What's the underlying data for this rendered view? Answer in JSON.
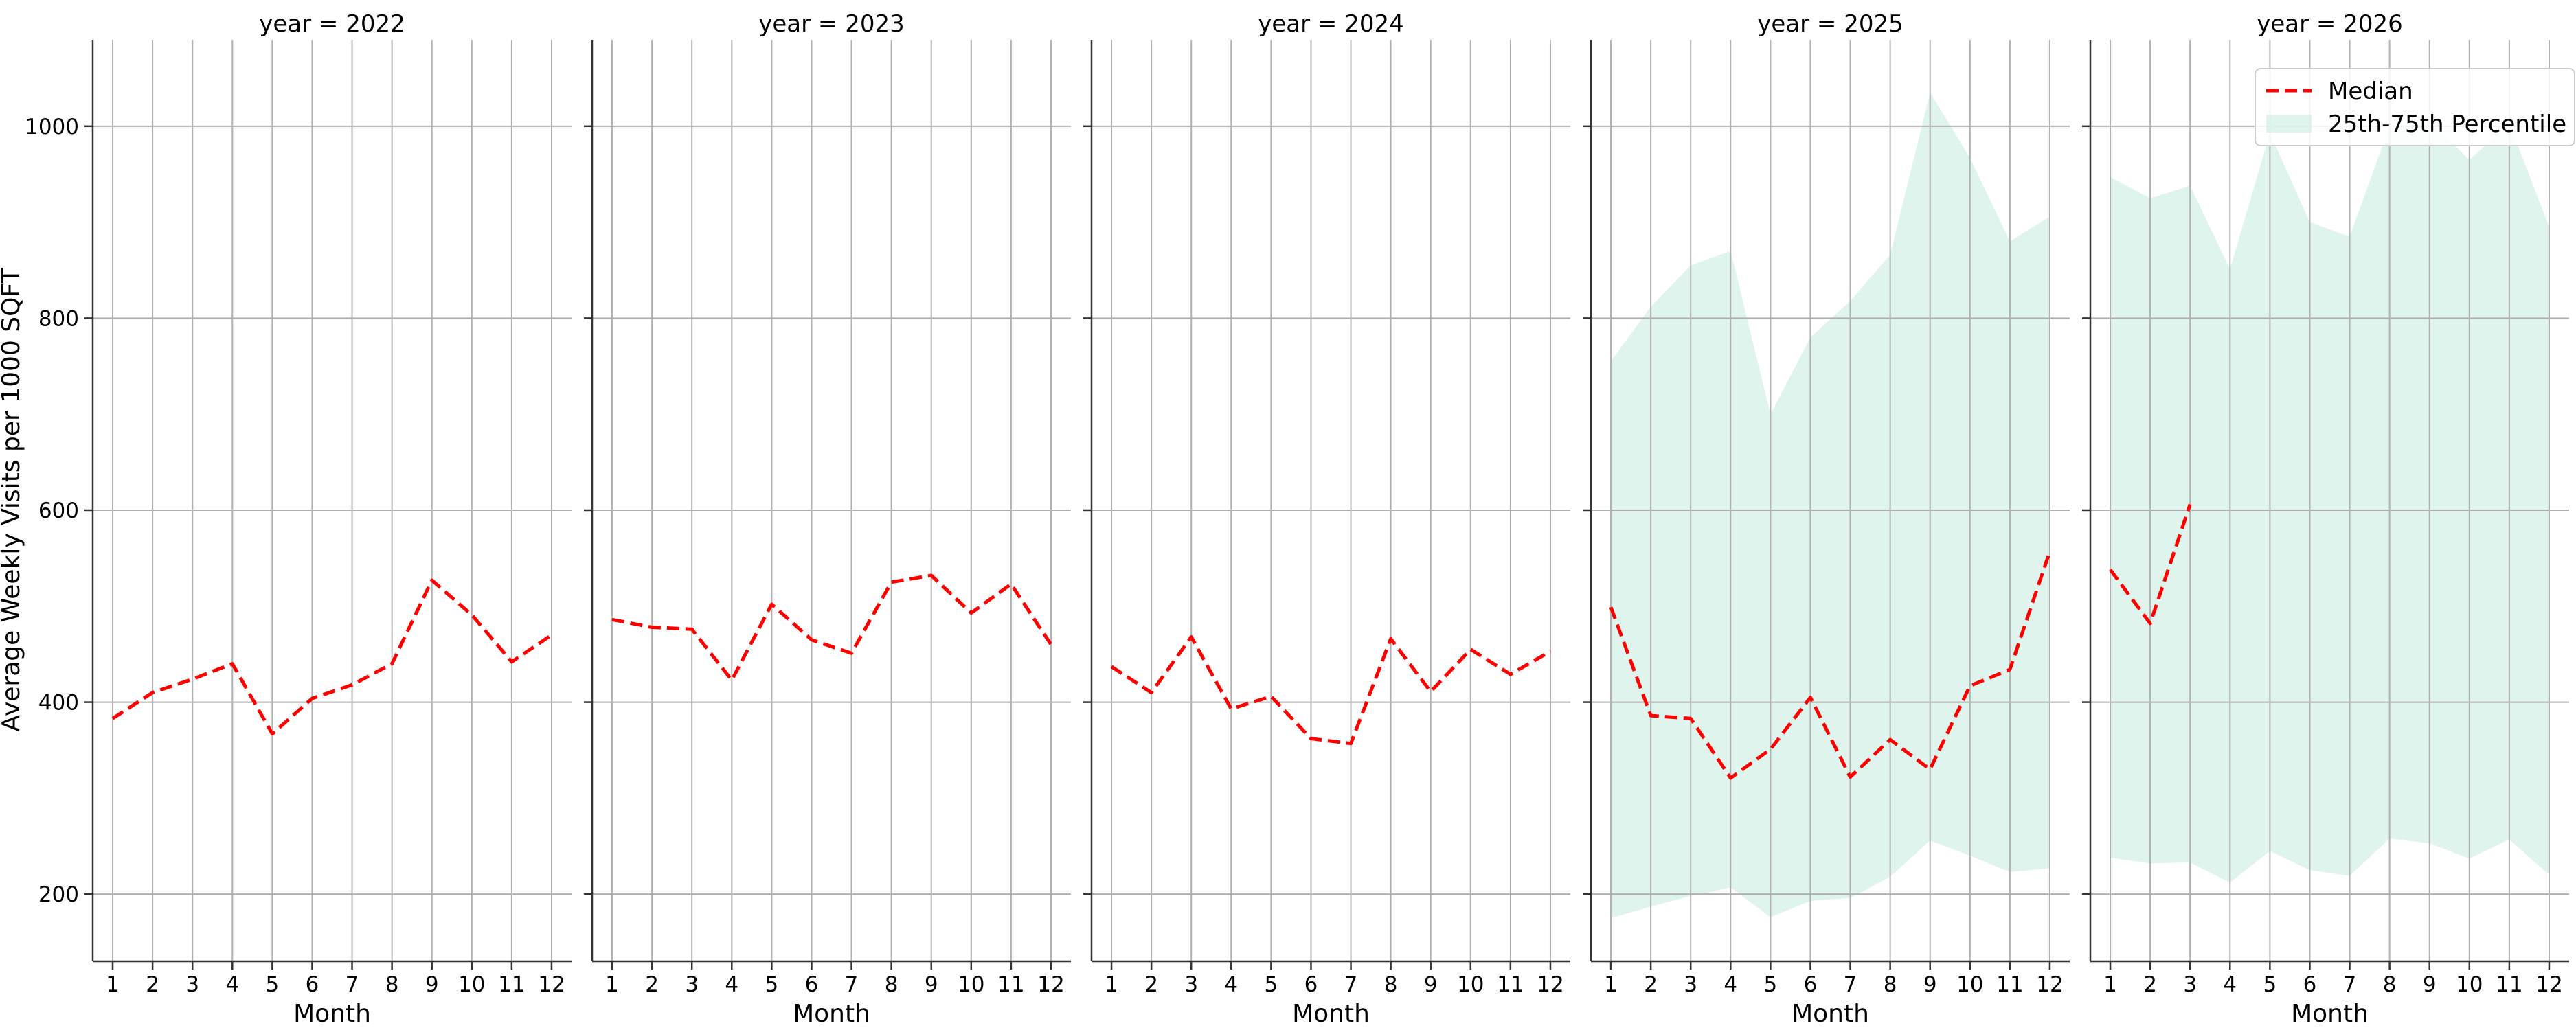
{
  "chart_data": {
    "type": "line",
    "ylabel": "Average Weekly Visits per 1000 SQFT",
    "xlabel": "Month",
    "ylim": [
      130,
      1090
    ],
    "xlim": [
      0.5,
      12.5
    ],
    "yticks": [
      200,
      400,
      600,
      800,
      1000
    ],
    "xticks": [
      1,
      2,
      3,
      4,
      5,
      6,
      7,
      8,
      9,
      10,
      11,
      12
    ],
    "grid": true,
    "legend": {
      "placement": "top-right",
      "entries": [
        {
          "label": "Median",
          "style": "dashed-line",
          "color": "#ff0000"
        },
        {
          "label": "25th-75th Percentile",
          "style": "band",
          "color": "#cdeee2"
        }
      ]
    },
    "colors": {
      "median": "#ff0000",
      "band": "#cdeee2"
    },
    "panels": [
      {
        "title": "year = 2022",
        "median": {
          "x": [
            1,
            2,
            3,
            4,
            5,
            6,
            7,
            8,
            9,
            10,
            11,
            12
          ],
          "y": [
            383,
            410,
            424,
            440,
            367,
            404,
            418,
            440,
            527,
            491,
            442,
            470
          ]
        },
        "band": null
      },
      {
        "title": "year = 2023",
        "median": {
          "x": [
            1,
            2,
            3,
            4,
            5,
            6,
            7,
            8,
            9,
            10,
            11,
            12
          ],
          "y": [
            486,
            478,
            476,
            423,
            502,
            465,
            451,
            525,
            532,
            493,
            523,
            460
          ]
        },
        "band": null
      },
      {
        "title": "year = 2024",
        "median": {
          "x": [
            1,
            2,
            3,
            4,
            5,
            6,
            7,
            8,
            9,
            10,
            11,
            12
          ],
          "y": [
            437,
            410,
            468,
            393,
            406,
            362,
            357,
            466,
            411,
            455,
            429,
            453
          ]
        },
        "band": null
      },
      {
        "title": "year = 2025",
        "median": {
          "x": [
            1,
            2,
            3,
            4,
            5,
            6,
            7,
            8,
            9,
            10,
            11,
            12
          ],
          "y": [
            499,
            386,
            383,
            321,
            351,
            405,
            322,
            361,
            330,
            417,
            434,
            557
          ]
        },
        "band": {
          "x": [
            1,
            2,
            3,
            4,
            5,
            6,
            7,
            8,
            9,
            10,
            11,
            12
          ],
          "low": [
            175,
            187,
            198,
            207,
            176,
            193,
            196,
            218,
            256,
            240,
            223,
            227
          ],
          "high": [
            755,
            812,
            855,
            870,
            700,
            780,
            818,
            866,
            1035,
            967,
            880,
            906
          ]
        }
      },
      {
        "title": "year = 2026",
        "median": {
          "x": [
            1,
            2,
            3
          ],
          "y": [
            538,
            482,
            606
          ]
        },
        "band": {
          "x": [
            1,
            2,
            3,
            4,
            5,
            6,
            7,
            8,
            9,
            10,
            11,
            12
          ],
          "low": [
            238,
            232,
            233,
            212,
            245,
            225,
            219,
            258,
            253,
            237,
            257,
            220
          ],
          "high": [
            947,
            925,
            938,
            851,
            993,
            900,
            885,
            1000,
            1005,
            965,
            1003,
            895
          ]
        }
      }
    ]
  }
}
